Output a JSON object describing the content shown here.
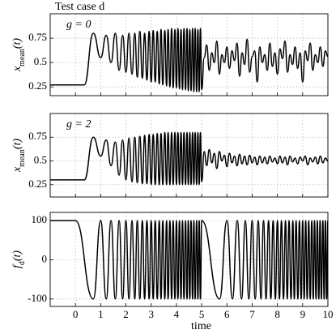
{
  "chart_data": [
    {
      "type": "line",
      "title": "Test case d",
      "annotation": "g = 0",
      "ylabel": {
        "main": "x",
        "sub": "mean",
        "tail": "(t)"
      },
      "xlim": [
        -1,
        10
      ],
      "ylim": [
        0.16,
        1.0
      ],
      "yticks": [
        0.25,
        0.5,
        0.75
      ],
      "xticks": [
        0,
        1,
        2,
        3,
        4,
        5,
        6,
        7,
        8,
        9,
        10
      ],
      "grid": true,
      "x": [
        -1,
        0.35,
        0.71,
        1.0,
        1.22,
        1.41,
        1.58,
        1.73,
        1.87,
        2.0,
        2.12,
        2.24,
        2.35,
        2.45,
        2.55,
        2.65,
        2.74,
        2.83,
        2.92,
        3.0,
        3.08,
        3.16,
        3.24,
        3.32,
        3.39,
        3.46,
        3.54,
        3.61,
        3.67,
        3.74,
        3.81,
        3.87,
        3.94,
        4.0,
        4.06,
        4.12,
        4.18,
        4.24,
        4.3,
        4.36,
        4.42,
        4.47,
        4.53,
        4.58,
        4.64,
        4.69,
        4.74,
        4.8,
        4.85,
        4.9,
        4.95,
        5.0,
        5.1,
        5.2,
        5.3,
        5.4,
        5.5,
        5.6,
        5.7,
        5.8,
        5.9,
        6.0,
        6.1,
        6.2,
        6.3,
        6.4,
        6.5,
        6.6,
        6.7,
        6.8,
        6.9,
        7.0,
        7.1,
        7.2,
        7.3,
        7.4,
        7.5,
        7.6,
        7.7,
        7.8,
        7.9,
        8.0,
        8.1,
        8.2,
        8.3,
        8.4,
        8.5,
        8.6,
        8.7,
        8.8,
        8.9,
        9.0,
        9.1,
        9.2,
        9.3,
        9.4,
        9.5,
        9.6,
        9.7,
        9.8,
        9.9,
        10.0
      ],
      "series": [
        {
          "color": "#000000",
          "values": [
            0.27,
            0.27,
            0.8,
            0.55,
            0.78,
            0.5,
            0.8,
            0.42,
            0.78,
            0.4,
            0.8,
            0.38,
            0.8,
            0.35,
            0.82,
            0.34,
            0.8,
            0.32,
            0.82,
            0.3,
            0.83,
            0.3,
            0.82,
            0.28,
            0.84,
            0.27,
            0.83,
            0.26,
            0.84,
            0.25,
            0.85,
            0.24,
            0.84,
            0.24,
            0.85,
            0.23,
            0.84,
            0.22,
            0.85,
            0.22,
            0.85,
            0.21,
            0.84,
            0.21,
            0.85,
            0.2,
            0.85,
            0.2,
            0.84,
            0.2,
            0.85,
            0.22,
            0.55,
            0.68,
            0.42,
            0.6,
            0.5,
            0.72,
            0.38,
            0.58,
            0.5,
            0.66,
            0.44,
            0.62,
            0.52,
            0.7,
            0.36,
            0.6,
            0.48,
            0.74,
            0.4,
            0.56,
            0.62,
            0.3,
            0.66,
            0.5,
            0.58,
            0.42,
            0.7,
            0.46,
            0.6,
            0.38,
            0.64,
            0.54,
            0.72,
            0.4,
            0.58,
            0.48,
            0.66,
            0.44,
            0.6,
            0.3,
            0.62,
            0.52,
            0.7,
            0.42,
            0.58,
            0.5,
            0.66,
            0.46,
            0.62,
            0.56
          ]
        }
      ]
    },
    {
      "type": "line",
      "annotation": "g = 2",
      "ylabel": {
        "main": "x",
        "sub": "mean",
        "tail": "(t)"
      },
      "xlim": [
        -1,
        10
      ],
      "ylim": [
        0.12,
        1.0
      ],
      "yticks": [
        0.25,
        0.5,
        0.75
      ],
      "xticks": [
        0,
        1,
        2,
        3,
        4,
        5,
        6,
        7,
        8,
        9,
        10
      ],
      "grid": true,
      "x": [
        -1,
        0.35,
        0.71,
        1.0,
        1.22,
        1.41,
        1.58,
        1.73,
        1.87,
        2.0,
        2.12,
        2.24,
        2.35,
        2.45,
        2.55,
        2.65,
        2.74,
        2.83,
        2.92,
        3.0,
        3.08,
        3.16,
        3.24,
        3.32,
        3.39,
        3.46,
        3.54,
        3.61,
        3.67,
        3.74,
        3.81,
        3.87,
        3.94,
        4.0,
        4.06,
        4.12,
        4.18,
        4.24,
        4.3,
        4.36,
        4.42,
        4.47,
        4.53,
        4.58,
        4.64,
        4.69,
        4.74,
        4.8,
        4.85,
        4.9,
        4.95,
        5.0,
        5.1,
        5.2,
        5.3,
        5.4,
        5.5,
        5.6,
        5.7,
        5.8,
        5.9,
        6.0,
        6.1,
        6.2,
        6.3,
        6.4,
        6.5,
        6.6,
        6.7,
        6.8,
        6.9,
        7.0,
        7.1,
        7.2,
        7.3,
        7.4,
        7.5,
        7.6,
        7.7,
        7.8,
        7.9,
        8.0,
        8.1,
        8.2,
        8.3,
        8.4,
        8.5,
        8.6,
        8.7,
        8.8,
        8.9,
        9.0,
        9.1,
        9.2,
        9.3,
        9.4,
        9.5,
        9.6,
        9.7,
        9.8,
        9.9,
        10.0
      ],
      "series": [
        {
          "color": "#000000",
          "values": [
            0.3,
            0.3,
            0.75,
            0.55,
            0.72,
            0.45,
            0.7,
            0.35,
            0.72,
            0.3,
            0.74,
            0.28,
            0.75,
            0.27,
            0.76,
            0.26,
            0.77,
            0.26,
            0.78,
            0.25,
            0.78,
            0.25,
            0.79,
            0.25,
            0.79,
            0.25,
            0.8,
            0.25,
            0.8,
            0.25,
            0.8,
            0.25,
            0.8,
            0.25,
            0.8,
            0.25,
            0.8,
            0.25,
            0.8,
            0.25,
            0.8,
            0.25,
            0.8,
            0.25,
            0.8,
            0.25,
            0.8,
            0.25,
            0.8,
            0.25,
            0.8,
            0.28,
            0.6,
            0.45,
            0.62,
            0.48,
            0.58,
            0.42,
            0.6,
            0.5,
            0.56,
            0.44,
            0.58,
            0.48,
            0.55,
            0.45,
            0.57,
            0.47,
            0.55,
            0.46,
            0.56,
            0.48,
            0.54,
            0.46,
            0.55,
            0.48,
            0.54,
            0.47,
            0.55,
            0.49,
            0.53,
            0.47,
            0.55,
            0.48,
            0.54,
            0.46,
            0.55,
            0.49,
            0.53,
            0.47,
            0.54,
            0.5,
            0.55,
            0.46,
            0.53,
            0.49,
            0.54,
            0.47,
            0.55,
            0.48,
            0.53,
            0.5
          ]
        }
      ]
    },
    {
      "type": "line",
      "ylabel": {
        "main": "f",
        "sub": "d",
        "tail": "(t)"
      },
      "xlabel": "time",
      "xlim": [
        -1,
        10
      ],
      "ylim": [
        -119,
        121
      ],
      "yticks": [
        -100,
        0,
        100
      ],
      "xticks": [
        0,
        1,
        2,
        3,
        4,
        5,
        6,
        7,
        8,
        9,
        10
      ],
      "grid": true,
      "x": [
        -1,
        0,
        0.71,
        1.0,
        1.22,
        1.41,
        1.58,
        1.73,
        1.87,
        2.0,
        2.12,
        2.24,
        2.35,
        2.45,
        2.55,
        2.65,
        2.74,
        2.83,
        2.92,
        3.0,
        3.08,
        3.16,
        3.24,
        3.32,
        3.39,
        3.46,
        3.54,
        3.61,
        3.67,
        3.74,
        3.81,
        3.87,
        3.94,
        4.0,
        4.06,
        4.12,
        4.18,
        4.24,
        4.3,
        4.36,
        4.42,
        4.47,
        4.53,
        4.58,
        4.64,
        4.69,
        4.74,
        4.8,
        4.85,
        4.9,
        4.95,
        5.0,
        5.71,
        6.0,
        6.22,
        6.41,
        6.58,
        6.73,
        6.87,
        7.0,
        7.12,
        7.24,
        7.35,
        7.45,
        7.55,
        7.65,
        7.74,
        7.83,
        7.92,
        8.0,
        8.08,
        8.16,
        8.24,
        8.32,
        8.39,
        8.46,
        8.54,
        8.61,
        8.67,
        8.74,
        8.81,
        8.87,
        8.94,
        9.0,
        9.06,
        9.12,
        9.18,
        9.24,
        9.3,
        9.36,
        9.42,
        9.47,
        9.53,
        9.58,
        9.64,
        9.69,
        9.74,
        9.8,
        9.85,
        9.9,
        9.95,
        10.0
      ],
      "series": [
        {
          "color": "#000000",
          "values": [
            100,
            100,
            -100,
            100,
            -100,
            100,
            -100,
            100,
            -100,
            100,
            -100,
            100,
            -100,
            100,
            -100,
            100,
            -100,
            100,
            -100,
            100,
            -100,
            100,
            -100,
            100,
            -100,
            100,
            -100,
            100,
            -100,
            100,
            -100,
            100,
            -100,
            100,
            -100,
            100,
            -100,
            100,
            -100,
            100,
            -100,
            100,
            -100,
            100,
            -100,
            100,
            -100,
            100,
            -100,
            100,
            -100,
            100,
            -100,
            100,
            -100,
            100,
            -100,
            100,
            -100,
            100,
            -100,
            100,
            -100,
            100,
            -100,
            100,
            -100,
            100,
            -100,
            100,
            -100,
            100,
            -100,
            100,
            -100,
            100,
            -100,
            100,
            -100,
            100,
            -100,
            100,
            -100,
            100,
            -100,
            100,
            -100,
            100,
            -100,
            100,
            -100,
            100,
            -100,
            100,
            -100,
            100,
            -100,
            100,
            -100,
            100,
            -100,
            100
          ]
        }
      ]
    }
  ]
}
